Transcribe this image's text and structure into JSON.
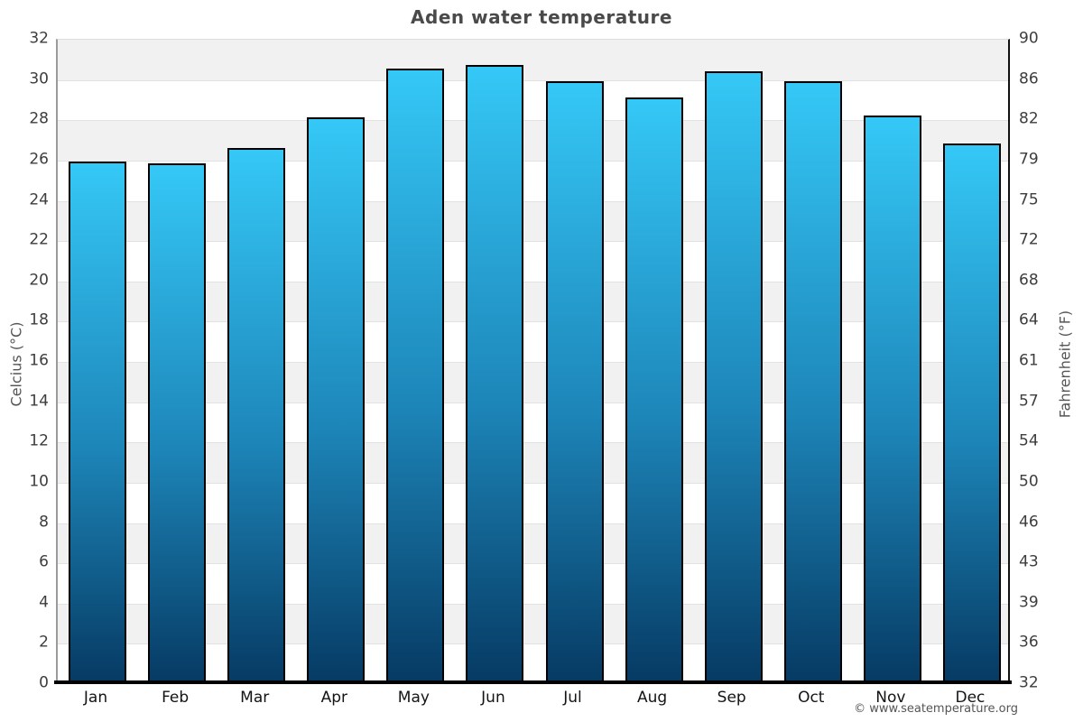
{
  "title": "Aden water temperature",
  "footer": "© www.seatemperature.org",
  "chart_data": {
    "type": "bar",
    "title": "Aden water temperature",
    "categories": [
      "Jan",
      "Feb",
      "Mar",
      "Apr",
      "May",
      "Jun",
      "Jul",
      "Aug",
      "Sep",
      "Oct",
      "Nov",
      "Dec"
    ],
    "values": [
      25.9,
      25.8,
      26.6,
      28.1,
      30.5,
      30.7,
      29.9,
      29.1,
      30.4,
      29.9,
      28.2,
      26.8
    ],
    "series_name": "Water temperature (°C)",
    "xlabel": "",
    "ylabel_left": "Celcius (°C)",
    "ylabel_right": "Fahrenheit (°F)",
    "ylim": [
      0,
      32
    ],
    "ytick_step": 2,
    "yticks_celsius": [
      32,
      30,
      28,
      26,
      24,
      22,
      20,
      18,
      16,
      14,
      12,
      10,
      8,
      6,
      4,
      2,
      0
    ],
    "yticks_fahrenheit": [
      90,
      86,
      82,
      79,
      75,
      72,
      68,
      64,
      61,
      57,
      54,
      50,
      46,
      43,
      39,
      36,
      32
    ],
    "grid": "horizontal-bands",
    "legend": "none",
    "colors": {
      "bar_top": "#35c8f6",
      "bar_mid": "#1d85b8",
      "bar_bottom": "#063a63",
      "bar_border": "#000000",
      "band_gray": "#f1f1f1",
      "band_white": "#ffffff",
      "gridline": "#e2e2e2",
      "title_text": "#4a4a4a",
      "tick_text": "#3d3d3d",
      "axis_label_text": "#555555",
      "bottom_axis": "#000000"
    }
  }
}
